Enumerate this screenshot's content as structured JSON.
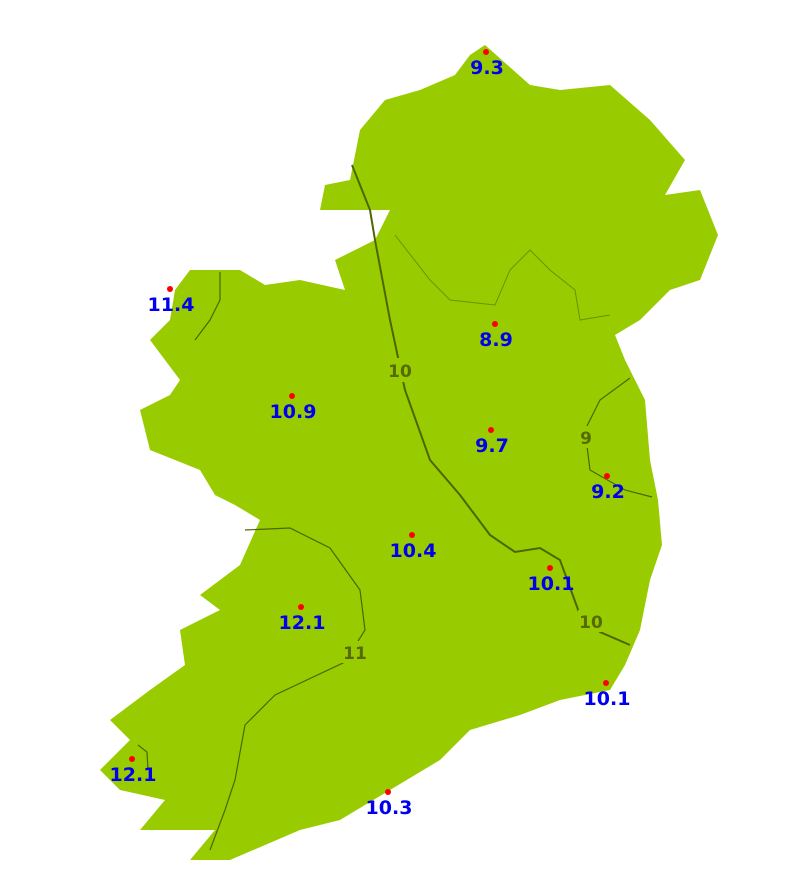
{
  "colors": {
    "land": "#99cc00",
    "contour": "#4d6600",
    "contour_label": "#556b00",
    "station_dot": "#ff0000",
    "station_label": "#0000ee",
    "background": "#ffffff"
  },
  "stations": [
    {
      "value": "9.3"
    },
    {
      "value": "11.4"
    },
    {
      "value": "8.9"
    },
    {
      "value": "10.9"
    },
    {
      "value": "9.7"
    },
    {
      "value": "9.2"
    },
    {
      "value": "10.4"
    },
    {
      "value": "10.1"
    },
    {
      "value": "12.1"
    },
    {
      "value": "10.1"
    },
    {
      "value": "12.1"
    },
    {
      "value": "10.3"
    }
  ],
  "contour_labels": [
    "10",
    "10",
    "9",
    "11"
  ]
}
